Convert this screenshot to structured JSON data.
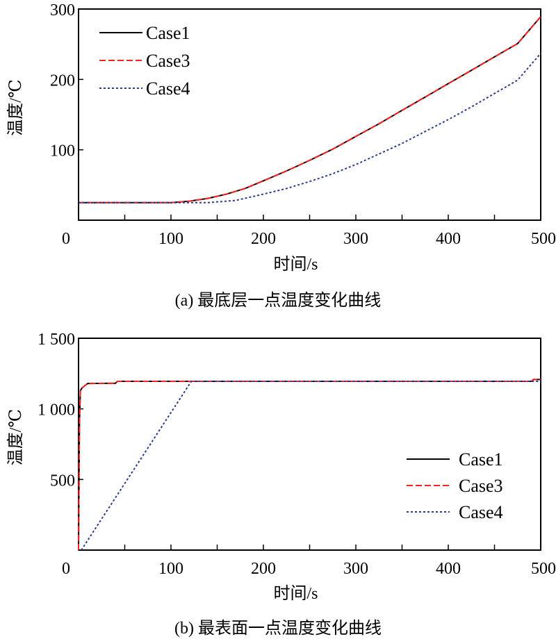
{
  "chart_data": [
    {
      "type": "line",
      "title": "(a) 最底层一点温度变化曲线",
      "xlabel": "时间/s",
      "ylabel": "温度/℃",
      "xlim": [
        0,
        500
      ],
      "ylim": [
        0,
        300
      ],
      "xticks": [
        "0",
        "100",
        "200",
        "300",
        "400",
        "500"
      ],
      "yticks": [
        "100",
        "200",
        "300"
      ],
      "legend_position": "top-left",
      "grid": false,
      "series": [
        {
          "name": "Case1",
          "color": "#000000",
          "dash": "solid",
          "x": [
            0,
            100,
            120,
            140,
            160,
            180,
            200,
            225,
            250,
            275,
            300,
            325,
            350,
            375,
            400,
            425,
            450,
            475,
            500
          ],
          "y": [
            25,
            25,
            27,
            31,
            37,
            45,
            56,
            70,
            85,
            101,
            119,
            137,
            156,
            175,
            194,
            213,
            232,
            251,
            289
          ]
        },
        {
          "name": "Case3",
          "color": "#ff2020",
          "dash": "dashed",
          "x": [
            0,
            100,
            120,
            140,
            160,
            180,
            200,
            225,
            250,
            275,
            300,
            325,
            350,
            375,
            400,
            425,
            450,
            475,
            500
          ],
          "y": [
            25,
            25,
            27,
            31,
            37,
            45,
            56,
            70,
            85,
            101,
            119,
            137,
            156,
            175,
            194,
            213,
            232,
            251,
            289
          ]
        },
        {
          "name": "Case4",
          "color": "#2b3990",
          "dash": "dotted",
          "x": [
            0,
            140,
            170,
            200,
            225,
            250,
            275,
            300,
            325,
            350,
            375,
            400,
            425,
            450,
            475,
            500
          ],
          "y": [
            25,
            25,
            28,
            37,
            45,
            55,
            66,
            79,
            94,
            109,
            126,
            143,
            161,
            180,
            199,
            237
          ]
        }
      ]
    },
    {
      "type": "line",
      "title": "(b) 最表面一点温度变化曲线",
      "xlabel": "时间/s",
      "ylabel": "温度/℃",
      "xlim": [
        0,
        500
      ],
      "ylim": [
        0,
        1500
      ],
      "xticks": [
        "0",
        "100",
        "200",
        "300",
        "400",
        "500"
      ],
      "yticks": [
        "500",
        "1 000",
        "1 500"
      ],
      "legend_position": "right",
      "grid": false,
      "series": [
        {
          "name": "Case1",
          "color": "#000000",
          "dash": "solid",
          "x": [
            0,
            1,
            2,
            4,
            7,
            10,
            40,
            42,
            490,
            492,
            500
          ],
          "y": [
            0,
            900,
            1130,
            1150,
            1165,
            1180,
            1182,
            1195,
            1195,
            1208,
            1208
          ]
        },
        {
          "name": "Case3",
          "color": "#ff2020",
          "dash": "dashed",
          "x": [
            0,
            1,
            2,
            4,
            7,
            10,
            40,
            42,
            490,
            492,
            500
          ],
          "y": [
            0,
            900,
            1130,
            1150,
            1165,
            1180,
            1182,
            1195,
            1195,
            1208,
            1208
          ]
        },
        {
          "name": "Case4",
          "color": "#2b3990",
          "dash": "dotted",
          "x": [
            3,
            122,
            500
          ],
          "y": [
            0,
            1195,
            1195
          ]
        }
      ]
    }
  ]
}
